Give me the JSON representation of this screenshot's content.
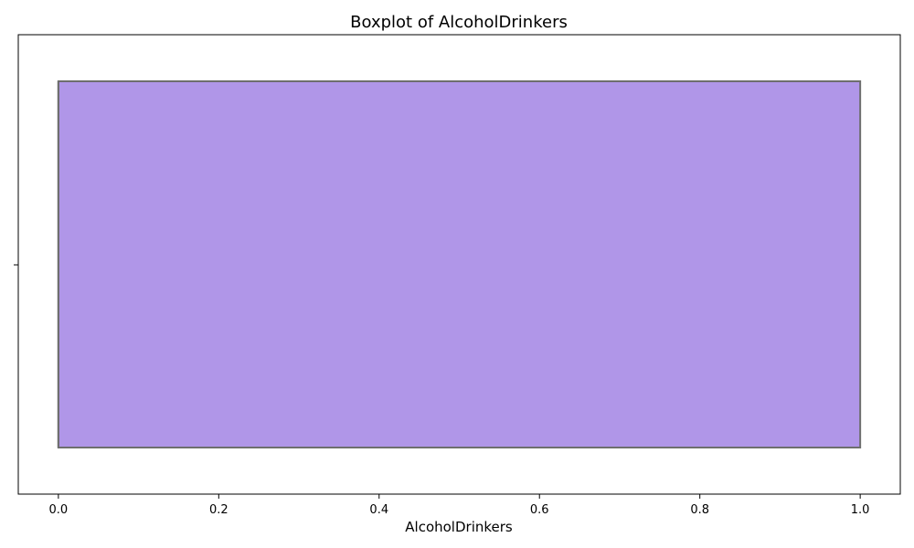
{
  "chart_data": {
    "type": "boxplot",
    "title": "Boxplot of AlcoholDrinkers",
    "xlabel": "AlcoholDrinkers",
    "ylabel": "",
    "orientation": "horizontal",
    "xlim": [
      -0.05,
      1.05
    ],
    "xticks": [
      0.0,
      0.2,
      0.4,
      0.6,
      0.8,
      1.0
    ],
    "xtick_labels": [
      "0.0",
      "0.2",
      "0.4",
      "0.6",
      "0.8",
      "1.0"
    ],
    "box": {
      "min": 0.0,
      "q1": 0.0,
      "median": 0.0,
      "q3": 1.0,
      "max": 1.0
    },
    "grid": false,
    "box_fill_color": "#b096e8",
    "box_edge_color": "#6e6e6e"
  }
}
